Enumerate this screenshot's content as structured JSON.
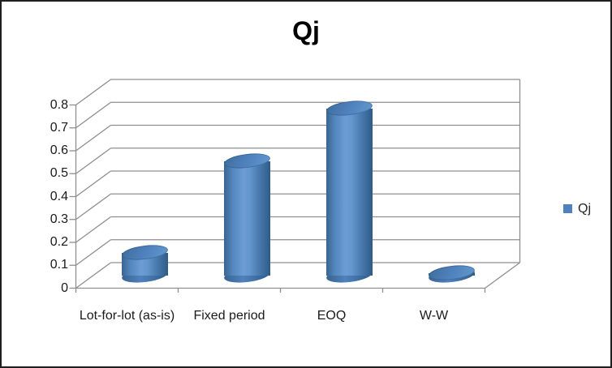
{
  "window": {
    "background": "#ffffff",
    "border_color": "#1f1f1f"
  },
  "chart_data": {
    "type": "bar",
    "subtype": "3d-cylinder",
    "title": "Qj",
    "categories": [
      "Lot-for-lot (as-is)",
      "Fixed period",
      "EOQ",
      "W-W"
    ],
    "series": [
      {
        "name": "Qj",
        "values": [
          0.1,
          0.5,
          0.73,
          0.01
        ],
        "color": "#4f81bd"
      }
    ],
    "xlabel": "",
    "ylabel": "",
    "ylim": [
      0,
      0.8
    ],
    "ytick_step": 0.1,
    "ytick_labels": [
      "0",
      "0.1",
      "0.2",
      "0.3",
      "0.4",
      "0.5",
      "0.6",
      "0.7",
      "0.8"
    ],
    "grid": true,
    "legend": {
      "position": "right",
      "entries": [
        {
          "label": "Qj",
          "color": "#4f81bd"
        }
      ]
    },
    "colors": {
      "grid": "#8f8f8f",
      "axis": "#8f8f8f",
      "text": "#1a1a1a",
      "title": "#000000"
    }
  }
}
